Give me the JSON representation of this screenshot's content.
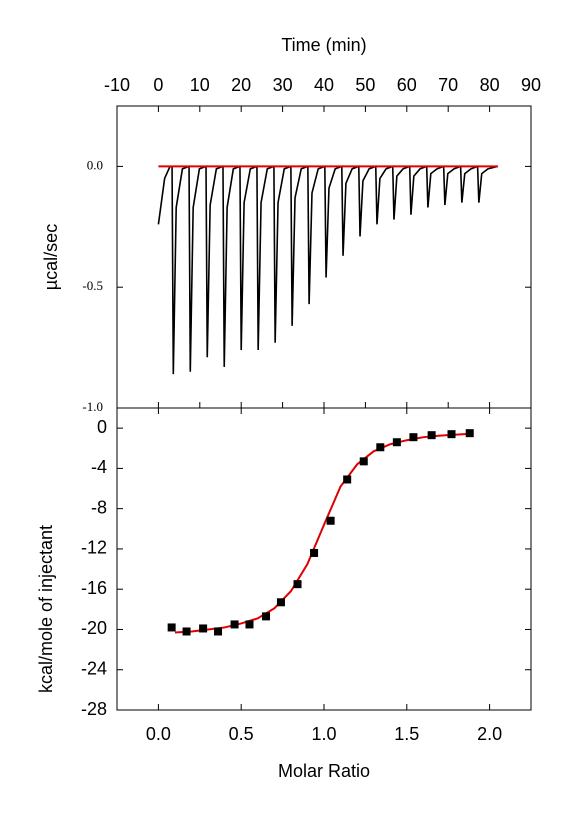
{
  "chart_data": [
    {
      "type": "line",
      "x_label": "Time (min)",
      "y_label": "µcal/sec",
      "xaxis_position": "top",
      "xlim": [
        -10,
        90
      ],
      "xticks": [
        -10,
        0,
        10,
        20,
        30,
        40,
        50,
        60,
        70,
        80,
        90
      ],
      "ylim": [
        -1.0,
        0.25
      ],
      "yticks": [
        {
          "value": 0,
          "label": "0.0"
        },
        {
          "value": -0.5,
          "label": "-0.5"
        },
        {
          "value": -1.0,
          "label": "-1.0"
        }
      ],
      "series": [
        {
          "mode": "line",
          "color": "#000000",
          "x": [
            0,
            1.5,
            2.8,
            3.3,
            3.6,
            4.3,
            5.8,
            7.4,
            7.7,
            8.4,
            9.9,
            11.5,
            11.8,
            12.5,
            14.0,
            15.6,
            15.9,
            16.6,
            18.1,
            19.7,
            20.0,
            20.7,
            22.2,
            23.8,
            24.1,
            24.8,
            26.3,
            27.9,
            28.2,
            28.9,
            30.4,
            32.0,
            32.3,
            33.0,
            34.5,
            36.1,
            36.4,
            37.1,
            38.6,
            40.2,
            40.5,
            41.2,
            42.7,
            44.3,
            44.6,
            45.3,
            46.8,
            48.4,
            48.7,
            49.4,
            50.9,
            52.5,
            52.8,
            53.5,
            55.0,
            56.6,
            56.9,
            57.6,
            59.1,
            60.7,
            61.0,
            61.7,
            63.2,
            64.8,
            65.1,
            65.8,
            67.3,
            68.9,
            69.2,
            69.9,
            71.4,
            73.0,
            73.3,
            74.0,
            75.5,
            77.1,
            77.4,
            78.1,
            79.6,
            82
          ],
          "values": [
            -0.24,
            -0.05,
            0.0,
            0.0,
            -0.86,
            -0.17,
            -0.01,
            0.0,
            -0.85,
            -0.17,
            -0.01,
            0.0,
            -0.79,
            -0.16,
            -0.01,
            0.0,
            -0.83,
            -0.17,
            -0.01,
            0.0,
            -0.76,
            -0.15,
            -0.01,
            0.0,
            -0.76,
            -0.15,
            -0.01,
            0.0,
            -0.73,
            -0.15,
            -0.01,
            0.0,
            -0.66,
            -0.13,
            -0.01,
            0.0,
            -0.57,
            -0.11,
            -0.01,
            0.0,
            -0.46,
            -0.09,
            -0.01,
            0.0,
            -0.37,
            -0.07,
            -0.01,
            0.0,
            -0.29,
            -0.06,
            -0.01,
            0.0,
            -0.24,
            -0.05,
            -0.01,
            0.0,
            -0.22,
            -0.04,
            -0.01,
            0.0,
            -0.2,
            -0.04,
            -0.01,
            0.0,
            -0.17,
            -0.03,
            -0.01,
            0.0,
            -0.16,
            -0.03,
            -0.01,
            0.0,
            -0.15,
            -0.03,
            -0.01,
            0.0,
            -0.15,
            -0.03,
            -0.01,
            0.0
          ]
        },
        {
          "mode": "line",
          "color": "#e00000",
          "x": [
            0,
            82
          ],
          "values": [
            0.0,
            0.0
          ]
        }
      ]
    },
    {
      "type": "scatter",
      "x_label": "Molar Ratio",
      "y_label": "kcal/mole of injectant",
      "xaxis_position": "bottom",
      "xlim": [
        -0.25,
        2.25
      ],
      "xticks": [
        {
          "value": 0,
          "label": "0.0"
        },
        {
          "value": 0.5,
          "label": "0.5"
        },
        {
          "value": 1.0,
          "label": "1.0"
        },
        {
          "value": 1.5,
          "label": "1.5"
        },
        {
          "value": 2.0,
          "label": "2.0"
        }
      ],
      "ylim": [
        -28,
        2
      ],
      "yticks": [
        0,
        -4,
        -8,
        -12,
        -16,
        -20,
        -24,
        -28
      ],
      "series": [
        {
          "mode": "line",
          "color": "#e00000",
          "x": [
            0.1,
            0.2,
            0.3,
            0.4,
            0.5,
            0.6,
            0.7,
            0.8,
            0.9,
            1.0,
            1.1,
            1.2,
            1.3,
            1.4,
            1.5,
            1.6,
            1.7,
            1.8,
            1.9
          ],
          "values": [
            -20.3,
            -20.2,
            -20.0,
            -19.8,
            -19.4,
            -18.9,
            -17.9,
            -16.2,
            -13.5,
            -9.6,
            -5.8,
            -3.6,
            -2.3,
            -1.6,
            -1.2,
            -0.9,
            -0.75,
            -0.65,
            -0.55
          ]
        },
        {
          "mode": "markers",
          "color": "#000000",
          "x": [
            0.08,
            0.17,
            0.27,
            0.36,
            0.46,
            0.55,
            0.65,
            0.74,
            0.84,
            0.94,
            1.04,
            1.14,
            1.24,
            1.34,
            1.44,
            1.54,
            1.65,
            1.77,
            1.88
          ],
          "values": [
            -19.8,
            -20.2,
            -19.9,
            -20.2,
            -19.5,
            -19.5,
            -18.7,
            -17.3,
            -15.5,
            -12.4,
            -9.2,
            -5.1,
            -3.3,
            -1.9,
            -1.4,
            -0.9,
            -0.7,
            -0.6,
            -0.5
          ]
        }
      ]
    }
  ]
}
